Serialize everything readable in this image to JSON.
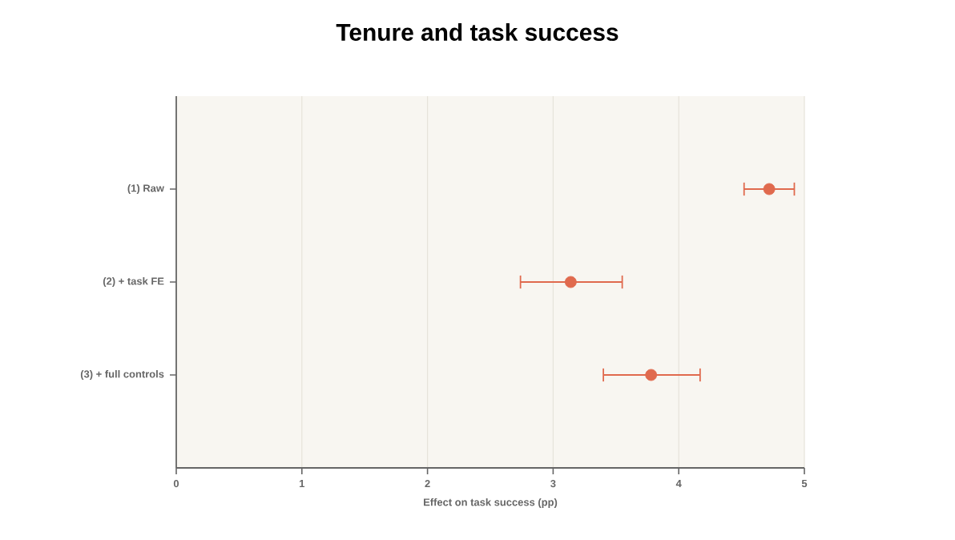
{
  "chart_data": {
    "type": "scatter",
    "title": "Tenure and task success",
    "xlabel": "Effect on task success (pp)",
    "orientation": "horizontal",
    "categories": [
      "(1) Raw",
      "(2) + task FE",
      "(3) + full controls"
    ],
    "values": [
      4.72,
      3.14,
      3.78
    ],
    "errors": [
      [
        4.52,
        4.92
      ],
      [
        2.74,
        3.55
      ],
      [
        3.4,
        4.17
      ]
    ],
    "color": "#e06a4e",
    "marker": "circle",
    "xlim": [
      0,
      5
    ],
    "xticks": [
      0,
      1,
      2,
      3,
      4,
      5
    ],
    "grid": "x"
  }
}
